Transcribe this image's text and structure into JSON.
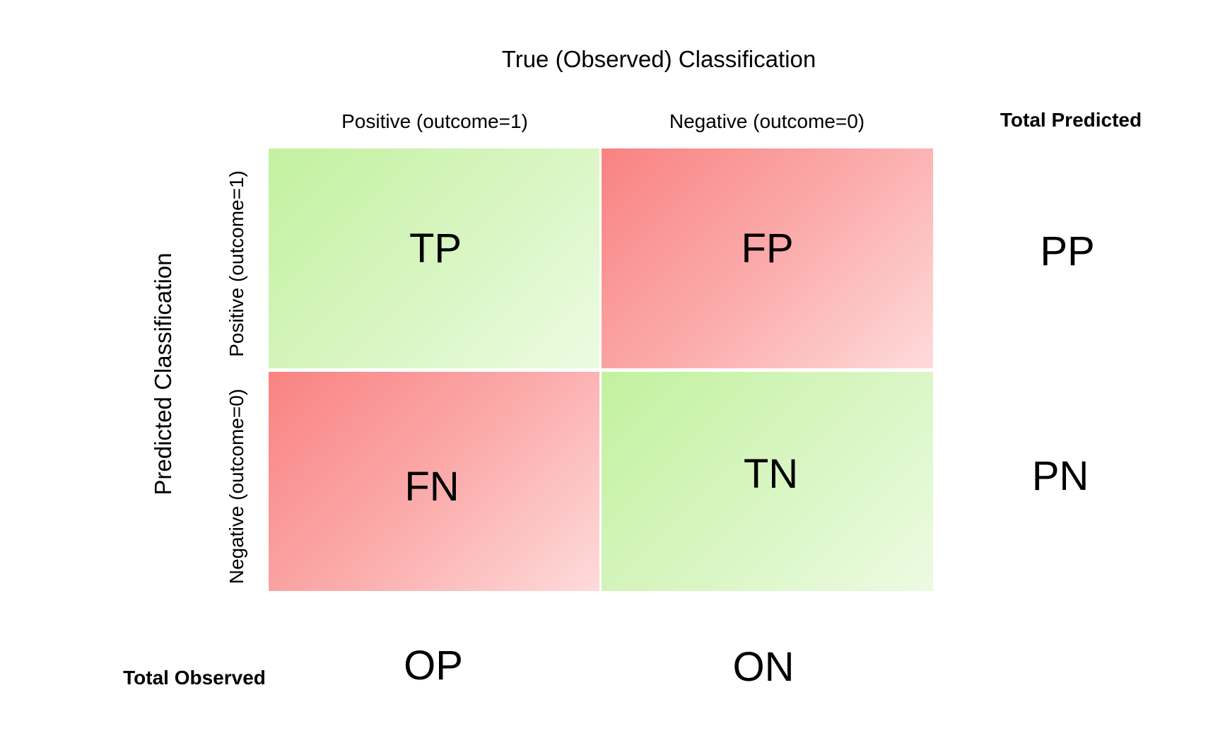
{
  "title": "True (Observed) Classification",
  "columns": {
    "positive": "Positive (outcome=1)",
    "negative": "Negative (outcome=0)",
    "total": "Total Predicted"
  },
  "rows": {
    "axis_label": "Predicted Classification",
    "positive": "Positive (outcome=1)",
    "negative": "Negative (outcome=0)",
    "total": "Total Observed"
  },
  "cells": {
    "tp": "TP",
    "fp": "FP",
    "fn": "FN",
    "tn": "TN"
  },
  "totals": {
    "pp": "PP",
    "pn": "PN",
    "op": "OP",
    "on": "ON"
  },
  "colors": {
    "correct": "#c2f19f",
    "error": "#f98282"
  }
}
